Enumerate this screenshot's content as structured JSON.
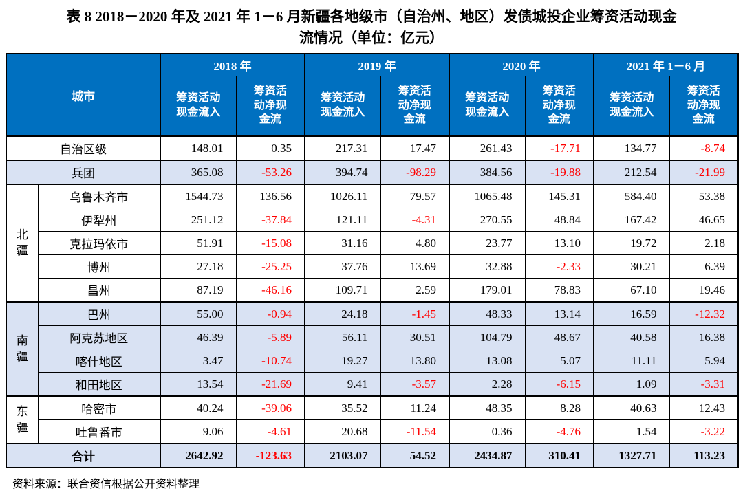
{
  "title": {
    "line1": "表 8  2018－2020 年及 2021 年 1－6 月新疆各地级市（自治州、地区）发债城投企业筹资活动现金",
    "line2": "流情况（单位：亿元）"
  },
  "table": {
    "city_header": "城市",
    "year_groups": [
      {
        "label": "2018 年",
        "sub": [
          "筹资活动\n现金流入",
          "筹资活\n动净现\n金流"
        ]
      },
      {
        "label": "2019 年",
        "sub": [
          "筹资活动\n现金流入",
          "筹资活\n动净现\n金流"
        ]
      },
      {
        "label": "2020 年",
        "sub": [
          "筹资活动\n现金流入",
          "筹资活\n动净现\n金流"
        ]
      },
      {
        "label": "2021 年 1－6 月",
        "sub": [
          "筹资活动\n现金流入",
          "筹资活\n动净现\n金流"
        ]
      }
    ],
    "sections": [
      {
        "kind": "flat",
        "label": "自治区级",
        "shaded": false,
        "values": [
          "148.01",
          "0.35",
          "217.31",
          "17.47",
          "261.43",
          "-17.71",
          "134.77",
          "-8.74"
        ]
      },
      {
        "kind": "flat",
        "label": "兵团",
        "shaded": true,
        "values": [
          "365.08",
          "-53.26",
          "394.74",
          "-98.29",
          "384.56",
          "-19.88",
          "212.54",
          "-21.99"
        ]
      },
      {
        "kind": "group",
        "label": "北疆",
        "shaded": false,
        "rows": [
          {
            "label": "乌鲁木齐市",
            "values": [
              "1544.73",
              "136.56",
              "1026.11",
              "79.57",
              "1065.48",
              "145.31",
              "584.40",
              "53.38"
            ]
          },
          {
            "label": "伊犁州",
            "values": [
              "251.12",
              "-37.84",
              "121.11",
              "-4.31",
              "270.55",
              "48.84",
              "167.42",
              "46.65"
            ]
          },
          {
            "label": "克拉玛依市",
            "values": [
              "51.91",
              "-15.08",
              "31.16",
              "4.80",
              "23.77",
              "13.10",
              "19.72",
              "2.18"
            ]
          },
          {
            "label": "博州",
            "values": [
              "27.18",
              "-25.25",
              "37.76",
              "13.69",
              "32.88",
              "-2.33",
              "30.21",
              "6.39"
            ]
          },
          {
            "label": "昌州",
            "values": [
              "87.19",
              "-46.16",
              "109.71",
              "2.59",
              "179.01",
              "78.83",
              "67.10",
              "19.46"
            ]
          }
        ]
      },
      {
        "kind": "group",
        "label": "南疆",
        "shaded": true,
        "rows": [
          {
            "label": "巴州",
            "values": [
              "55.00",
              "-0.94",
              "24.18",
              "-1.45",
              "48.33",
              "13.14",
              "16.59",
              "-12.32"
            ]
          },
          {
            "label": "阿克苏地区",
            "values": [
              "46.39",
              "-5.89",
              "56.11",
              "30.51",
              "104.79",
              "48.67",
              "40.58",
              "16.38"
            ]
          },
          {
            "label": "喀什地区",
            "values": [
              "3.47",
              "-10.74",
              "19.27",
              "13.80",
              "13.08",
              "5.07",
              "11.11",
              "5.94"
            ]
          },
          {
            "label": "和田地区",
            "values": [
              "13.54",
              "-21.69",
              "9.41",
              "-3.57",
              "2.28",
              "-6.15",
              "1.09",
              "-3.31"
            ]
          }
        ]
      },
      {
        "kind": "group",
        "label": "东疆",
        "shaded": false,
        "rows": [
          {
            "label": "哈密市",
            "values": [
              "40.24",
              "-39.06",
              "35.52",
              "11.24",
              "48.35",
              "8.28",
              "40.63",
              "12.43"
            ]
          },
          {
            "label": "吐鲁番市",
            "values": [
              "9.06",
              "-4.61",
              "20.68",
              "-11.54",
              "0.36",
              "-4.76",
              "1.54",
              "-3.22"
            ]
          }
        ]
      },
      {
        "kind": "total",
        "label": "合计",
        "shaded": true,
        "values": [
          "2642.92",
          "-123.63",
          "2103.07",
          "54.52",
          "2434.87",
          "310.41",
          "1327.71",
          "113.23"
        ]
      }
    ]
  },
  "colors": {
    "header_blue": "#0070C0",
    "row_shade": "#D9E2F3",
    "negative_red": "#FF0000"
  },
  "source": "资料来源：联合资信根据公开资料整理"
}
